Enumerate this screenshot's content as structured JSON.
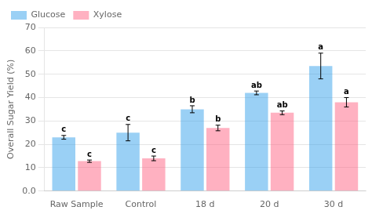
{
  "chart_data": {
    "type": "bar",
    "categories": [
      "Raw Sample",
      "Control",
      "18 d",
      "20 d",
      "30 d"
    ],
    "series": [
      {
        "name": "Glucose",
        "values": [
          23.0,
          25.0,
          35.0,
          42.0,
          53.5
        ],
        "errors": [
          0.8,
          3.5,
          1.5,
          0.8,
          5.5
        ],
        "annotations": [
          "c",
          "c",
          "b",
          "ab",
          "a"
        ]
      },
      {
        "name": "Xylose",
        "values": [
          12.8,
          14.0,
          27.0,
          33.5,
          38.0
        ],
        "errors": [
          0.5,
          1.0,
          1.2,
          0.8,
          2.0
        ],
        "annotations": [
          "c",
          "c",
          "b",
          "ab",
          "a"
        ]
      }
    ],
    "ylabel": "Overall Sugar Yield (%)",
    "ylim": [
      0,
      70
    ],
    "yticks": [
      {
        "value": 0,
        "label": "0.0"
      },
      10,
      20,
      30,
      40,
      50,
      60,
      70
    ],
    "grid": true,
    "legend": "upper left"
  }
}
